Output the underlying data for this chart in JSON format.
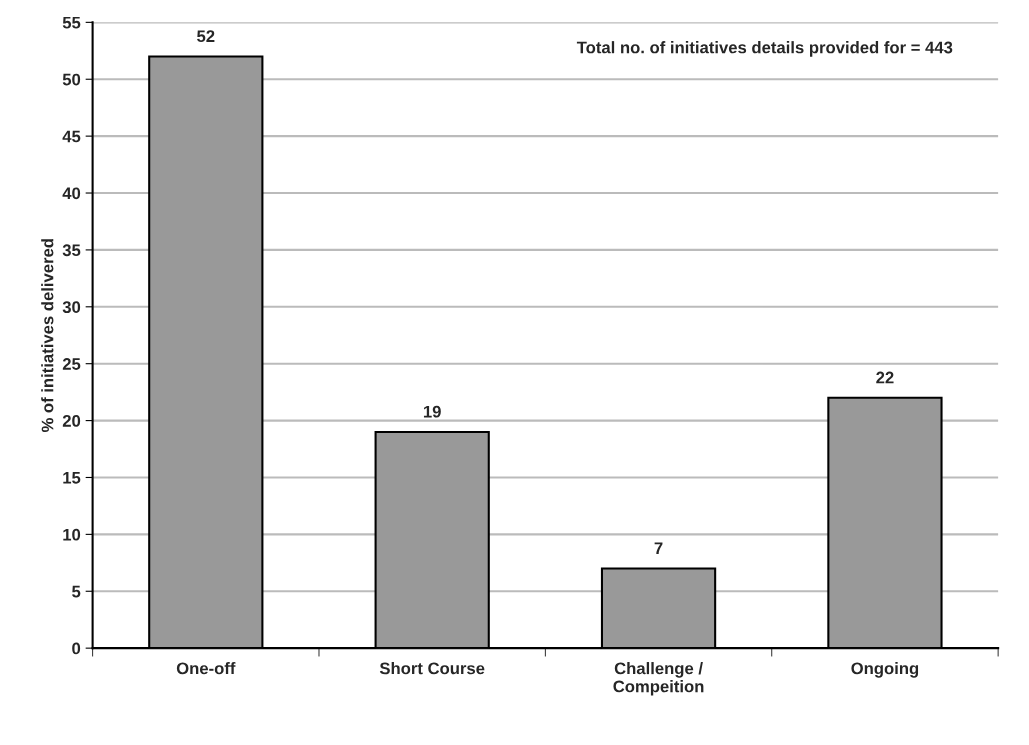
{
  "chart_data": {
    "type": "bar",
    "ylabel": "% of initiatives delivered",
    "categories": [
      "One-off",
      "Short Course",
      "Challenge /\nCompeition",
      "Ongoing"
    ],
    "values": [
      52,
      19,
      7,
      22
    ],
    "color": "#999999",
    "ylim": [
      0,
      55
    ],
    "yticks": [
      0,
      5,
      10,
      15,
      20,
      25,
      30,
      35,
      40,
      45,
      50,
      55
    ],
    "grid": "y",
    "data_labels": true,
    "annotations": [
      "Total no. of initiatives details provided for = 443"
    ]
  }
}
